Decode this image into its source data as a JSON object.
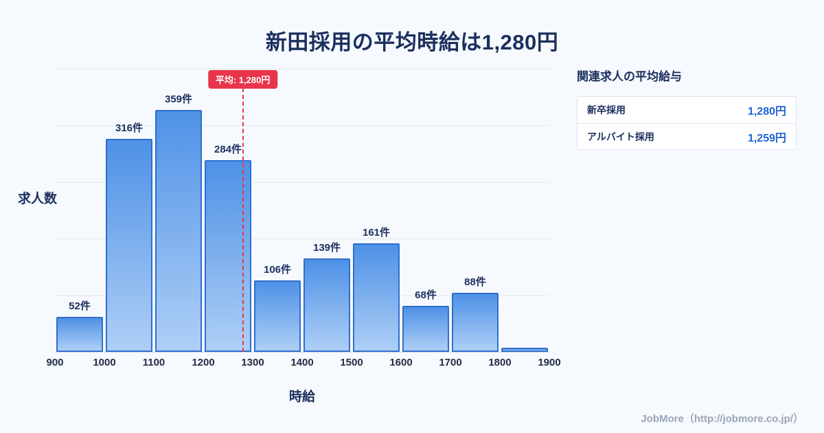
{
  "title": "新田採用の平均時給は1,280円",
  "chart_data": {
    "type": "bar",
    "title": "新田採用の平均時給は1,280円",
    "xlabel": "時給",
    "ylabel": "求人数",
    "bin_edges": [
      900,
      1000,
      1100,
      1200,
      1300,
      1400,
      1500,
      1600,
      1700,
      1800,
      1900
    ],
    "values": [
      52,
      316,
      359,
      284,
      106,
      139,
      161,
      68,
      88,
      6
    ],
    "labels": [
      "52件",
      "316件",
      "359件",
      "284件",
      "106件",
      "139件",
      "161件",
      "68件",
      "88件",
      ""
    ],
    "average": {
      "value": 1280,
      "label": "平均: 1,280円"
    },
    "xlim": [
      900,
      1900
    ],
    "ylim": [
      0,
      420
    ],
    "grid": "horizontal",
    "colors": {
      "bar_fill_top": "#4e91e6",
      "bar_fill_bottom": "#aecff6",
      "bar_border": "#2f6fce",
      "average_line": "#e8354b",
      "title_text": "#1b2f5e"
    }
  },
  "side_panel": {
    "heading": "関連求人の平均給与",
    "rows": [
      {
        "label": "新卒採用",
        "value": "1,280円"
      },
      {
        "label": "アルバイト採用",
        "value": "1,259円"
      }
    ]
  },
  "footer": {
    "credit": "JobMore（http://jobmore.co.jp/）"
  }
}
